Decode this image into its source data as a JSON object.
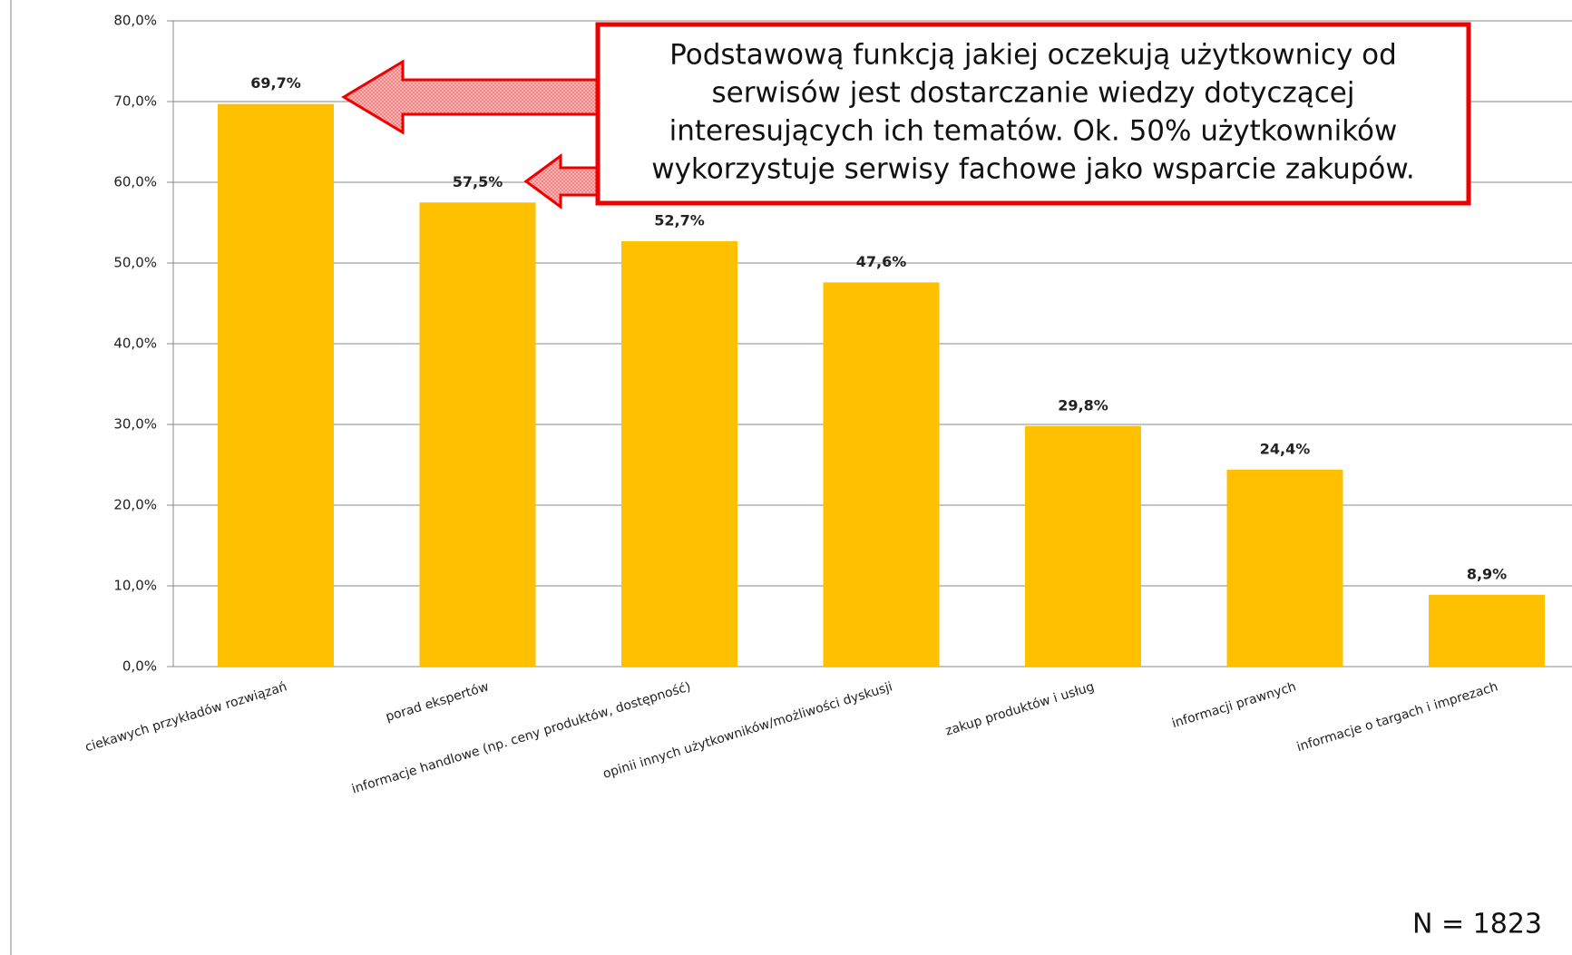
{
  "chart_data": {
    "type": "bar",
    "categories": [
      "ciekawych przykładów rozwiązań",
      "porad ekspertów",
      "informacje handlowe (np. ceny produktów, dostępność)",
      "opinii innych użytkowników/możliwości dyskusji",
      "zakup produktów i usług",
      "informacji prawnych",
      "informacje o targach i imprezach"
    ],
    "values": [
      69.7,
      57.5,
      52.7,
      47.6,
      29.8,
      24.4,
      8.9
    ],
    "value_labels": [
      "69,7%",
      "57,5%",
      "52,7%",
      "47,6%",
      "29,8%",
      "24,4%",
      "8,9%"
    ],
    "color": "#ffc000",
    "ylim": [
      0,
      80
    ],
    "yticks": [
      {
        "value": 0,
        "label": "0,0%"
      },
      {
        "value": 10,
        "label": "10,0%"
      },
      {
        "value": 20,
        "label": "20,0%"
      },
      {
        "value": 30,
        "label": "30,0%"
      },
      {
        "value": 40,
        "label": "40,0%"
      },
      {
        "value": 50,
        "label": "50,0%"
      },
      {
        "value": 60,
        "label": "60,0%"
      },
      {
        "value": 70,
        "label": "70,0%"
      },
      {
        "value": 80,
        "label": "80,0%"
      }
    ],
    "grid": true,
    "annotation": [
      "Podstawową funkcją jakiej oczekują użytkownicy od",
      "serwisów jest dostarczanie wiedzy dotyczącej",
      "interesujących ich tematów. Ok. 50% użytkowników",
      "wykorzystuje serwisy fachowe jako wsparcie zakupów."
    ],
    "note": "N = 1823"
  }
}
